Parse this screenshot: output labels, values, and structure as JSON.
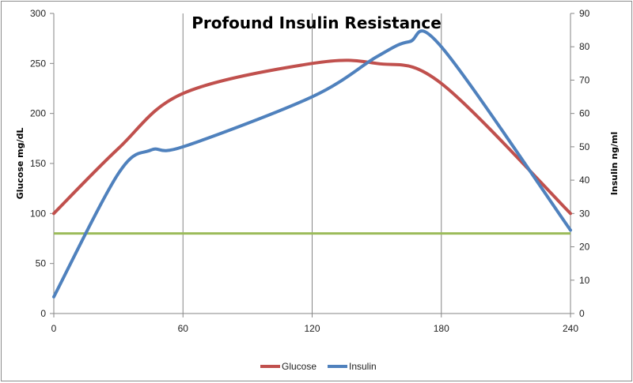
{
  "chart_data": {
    "type": "line",
    "title": "Profound Insulin Resistance",
    "xlabel": "",
    "ylabel": "Glucose  mg/dL",
    "y2label": "Insulin ng/ml",
    "xlim": [
      0,
      240
    ],
    "ylim": [
      0,
      300
    ],
    "y2lim": [
      0,
      90
    ],
    "x_ticks": [
      0,
      60,
      120,
      180,
      240
    ],
    "y_ticks": [
      0,
      50,
      100,
      150,
      200,
      250,
      300
    ],
    "y2_ticks": [
      0,
      10,
      20,
      30,
      40,
      50,
      60,
      70,
      80,
      90
    ],
    "vertical_grid": true,
    "legend_position": "bottom",
    "series": [
      {
        "name": "Glucose",
        "axis": "left",
        "color": "#c0504d",
        "x": [
          0,
          30,
          60,
          120,
          150,
          180,
          240
        ],
        "y": [
          100,
          165,
          220,
          250,
          250,
          230,
          100
        ]
      },
      {
        "name": "Insulin",
        "axis": "right",
        "color": "#4f81bd",
        "x": [
          0,
          30,
          45,
          60,
          120,
          150,
          165,
          180,
          240
        ],
        "y": [
          5,
          42,
          49,
          50,
          65,
          77,
          81.5,
          80,
          25
        ]
      }
    ],
    "reference_line": {
      "axis": "left",
      "y": 80,
      "color": "#9bbb59"
    }
  }
}
